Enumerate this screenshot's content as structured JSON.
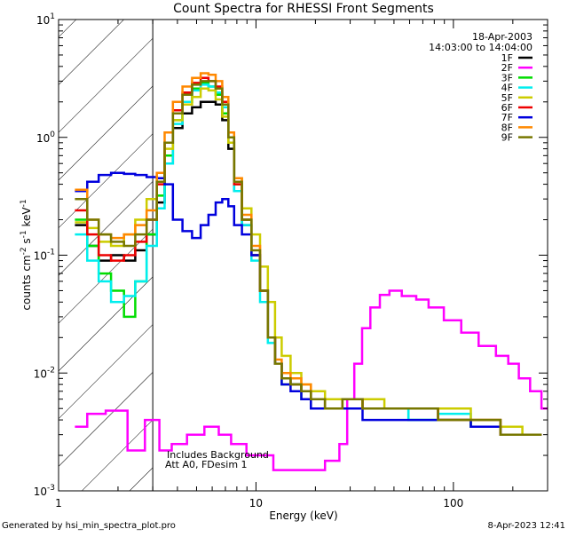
{
  "chart_data": {
    "type": "line",
    "title": "Count Spectra for RHESSI Front Segments",
    "xlabel": "Energy (keV)",
    "ylabel_parts": {
      "base": "counts cm",
      "e1": "-2",
      "mid1": " s",
      "e2": "-1",
      "mid2": " keV",
      "e3": "-1"
    },
    "xscale": "log",
    "yscale": "log",
    "xlim": [
      1,
      300
    ],
    "ylim": [
      0.001,
      10
    ],
    "x_ticks": [
      {
        "value": 1,
        "label": "1"
      },
      {
        "value": 10,
        "label": "10"
      },
      {
        "value": 100,
        "label": "100"
      }
    ],
    "y_ticks": [
      {
        "value": 0.001,
        "base": "10",
        "exp": "-3"
      },
      {
        "value": 0.01,
        "base": "10",
        "exp": "-2"
      },
      {
        "value": 0.1,
        "base": "10",
        "exp": "-1"
      },
      {
        "value": 1,
        "base": "10",
        "exp": "0"
      },
      {
        "value": 10,
        "base": "10",
        "exp": "1"
      }
    ],
    "hatched_region": [
      1,
      3
    ],
    "date": "18-Apr-2003",
    "time_range": "14:03:00 to 14:04:00",
    "annotation_lines": [
      "Includes Background",
      "Att A0, FDesim 1"
    ],
    "footer_left": "Generated by hsi_min_spectra_plot.pro",
    "footer_right": "8-Apr-2023 12:41",
    "series": [
      {
        "name": "1F",
        "color": "#000000",
        "x": [
          1.3,
          1.5,
          1.7,
          2.0,
          2.3,
          2.6,
          3.0,
          3.3,
          3.6,
          4.0,
          4.5,
          5.0,
          5.5,
          6.0,
          6.5,
          7.0,
          7.5,
          8.0,
          9.0,
          10.0,
          11.0,
          12.0,
          13.0,
          14.0,
          16.0,
          18.0,
          20.0,
          25.0,
          30.0,
          40.0,
          50.0,
          70.0,
          100.0,
          150.0,
          200.0,
          250.0
        ],
        "y": [
          0.18,
          0.12,
          0.09,
          0.1,
          0.09,
          0.11,
          0.15,
          0.28,
          0.6,
          1.2,
          1.6,
          1.8,
          2.0,
          2.0,
          1.9,
          1.4,
          0.8,
          0.35,
          0.18,
          0.1,
          0.05,
          0.02,
          0.012,
          0.009,
          0.008,
          0.007,
          0.006,
          0.005,
          0.005,
          0.005,
          0.005,
          0.005,
          0.004,
          0.0035,
          0.003,
          0.003
        ]
      },
      {
        "name": "2F",
        "color": "#ff00ff",
        "x": [
          1.3,
          1.5,
          2.0,
          2.5,
          3.0,
          3.5,
          4.0,
          5.0,
          6.0,
          7.0,
          8.0,
          10.0,
          15.0,
          20.0,
          25.0,
          28.0,
          30.0,
          33.0,
          36.0,
          40.0,
          45.0,
          50.0,
          60.0,
          70.0,
          80.0,
          100.0,
          120.0,
          150.0,
          180.0,
          200.0,
          230.0,
          260.0,
          300.0
        ],
        "y": [
          0.0035,
          0.0045,
          0.0048,
          0.0022,
          0.004,
          0.0022,
          0.0025,
          0.003,
          0.0035,
          0.003,
          0.0025,
          0.002,
          0.0015,
          0.0015,
          0.0018,
          0.0025,
          0.006,
          0.012,
          0.024,
          0.036,
          0.046,
          0.05,
          0.045,
          0.042,
          0.036,
          0.028,
          0.022,
          0.017,
          0.014,
          0.012,
          0.009,
          0.007,
          0.005
        ]
      },
      {
        "name": "3F",
        "color": "#00dd00",
        "x": [
          1.3,
          1.5,
          1.7,
          2.0,
          2.3,
          2.6,
          3.0,
          3.3,
          3.6,
          4.0,
          4.5,
          5.0,
          5.5,
          6.0,
          6.5,
          7.0,
          7.5,
          8.0,
          9.0,
          10.0,
          11.0,
          12.0,
          13.0,
          14.0,
          16.0,
          18.0,
          20.0,
          25.0,
          30.0,
          40.0,
          50.0,
          70.0,
          100.0,
          150.0,
          200.0,
          250.0
        ],
        "y": [
          0.2,
          0.12,
          0.07,
          0.05,
          0.03,
          0.06,
          0.15,
          0.32,
          0.7,
          1.4,
          2.0,
          2.6,
          2.9,
          2.7,
          2.3,
          1.6,
          0.9,
          0.4,
          0.2,
          0.1,
          0.05,
          0.02,
          0.012,
          0.008,
          0.008,
          0.006,
          0.005,
          0.005,
          0.006,
          0.005,
          0.005,
          0.004,
          0.004,
          0.0035,
          0.003,
          0.003
        ]
      },
      {
        "name": "4F",
        "color": "#00eeee",
        "x": [
          1.3,
          1.5,
          1.7,
          2.0,
          2.3,
          2.6,
          3.0,
          3.3,
          3.6,
          4.0,
          4.5,
          5.0,
          5.5,
          6.0,
          6.5,
          7.0,
          7.5,
          8.0,
          9.0,
          10.0,
          11.0,
          12.0,
          13.0,
          14.0,
          16.0,
          18.0,
          20.0,
          25.0,
          30.0,
          40.0,
          50.0,
          70.0,
          100.0,
          150.0,
          200.0,
          250.0
        ],
        "y": [
          0.15,
          0.09,
          0.06,
          0.04,
          0.045,
          0.06,
          0.12,
          0.25,
          0.6,
          1.3,
          2.0,
          2.5,
          2.8,
          2.7,
          2.4,
          1.8,
          0.9,
          0.35,
          0.18,
          0.09,
          0.04,
          0.018,
          0.012,
          0.009,
          0.008,
          0.007,
          0.006,
          0.005,
          0.005,
          0.005,
          0.005,
          0.004,
          0.0045,
          0.004,
          0.003,
          0.003
        ]
      },
      {
        "name": "5F",
        "color": "#cccc00",
        "x": [
          1.3,
          1.5,
          1.7,
          2.0,
          2.3,
          2.6,
          3.0,
          3.3,
          3.6,
          4.0,
          4.5,
          5.0,
          5.5,
          6.0,
          6.5,
          7.0,
          7.5,
          8.0,
          9.0,
          10.0,
          11.0,
          12.0,
          13.0,
          14.0,
          16.0,
          18.0,
          20.0,
          25.0,
          30.0,
          40.0,
          50.0,
          70.0,
          100.0,
          150.0,
          200.0,
          250.0
        ],
        "y": [
          0.19,
          0.17,
          0.13,
          0.12,
          0.15,
          0.2,
          0.3,
          0.45,
          0.8,
          1.4,
          1.9,
          2.2,
          2.6,
          2.5,
          2.1,
          1.5,
          0.9,
          0.45,
          0.25,
          0.15,
          0.08,
          0.04,
          0.02,
          0.014,
          0.01,
          0.008,
          0.007,
          0.006,
          0.006,
          0.006,
          0.005,
          0.005,
          0.005,
          0.004,
          0.0035,
          0.003
        ]
      },
      {
        "name": "6F",
        "color": "#ee0000",
        "x": [
          1.3,
          1.5,
          1.7,
          2.0,
          2.3,
          2.6,
          3.0,
          3.3,
          3.6,
          4.0,
          4.5,
          5.0,
          5.5,
          6.0,
          6.5,
          7.0,
          7.5,
          8.0,
          9.0,
          10.0,
          11.0,
          12.0,
          13.0,
          14.0,
          16.0,
          18.0,
          20.0,
          25.0,
          30.0,
          40.0,
          50.0,
          70.0,
          100.0,
          150.0,
          200.0,
          250.0
        ],
        "y": [
          0.24,
          0.15,
          0.1,
          0.09,
          0.1,
          0.13,
          0.2,
          0.4,
          0.9,
          1.7,
          2.4,
          2.9,
          3.2,
          3.0,
          2.7,
          2.0,
          1.0,
          0.4,
          0.2,
          0.1,
          0.05,
          0.02,
          0.012,
          0.009,
          0.008,
          0.007,
          0.006,
          0.005,
          0.006,
          0.005,
          0.005,
          0.005,
          0.004,
          0.004,
          0.003,
          0.003
        ]
      },
      {
        "name": "7F",
        "color": "#0000dd",
        "x": [
          1.3,
          1.5,
          1.7,
          2.0,
          2.3,
          2.6,
          3.0,
          3.3,
          3.6,
          4.0,
          4.5,
          5.0,
          5.5,
          6.0,
          6.5,
          7.0,
          7.5,
          8.0,
          9.0,
          10.0,
          11.0,
          12.0,
          13.0,
          14.0,
          16.0,
          18.0,
          20.0,
          25.0,
          30.0,
          40.0,
          50.0,
          70.0,
          100.0,
          150.0,
          200.0,
          250.0
        ],
        "y": [
          0.35,
          0.42,
          0.48,
          0.5,
          0.49,
          0.48,
          0.46,
          0.45,
          0.4,
          0.2,
          0.16,
          0.14,
          0.18,
          0.22,
          0.28,
          0.3,
          0.26,
          0.18,
          0.15,
          0.1,
          0.05,
          0.02,
          0.012,
          0.008,
          0.007,
          0.006,
          0.005,
          0.005,
          0.005,
          0.004,
          0.004,
          0.004,
          0.004,
          0.0035,
          0.003,
          0.003
        ]
      },
      {
        "name": "8F",
        "color": "#ff8800",
        "x": [
          1.3,
          1.5,
          1.7,
          2.0,
          2.3,
          2.6,
          3.0,
          3.3,
          3.6,
          4.0,
          4.5,
          5.0,
          5.5,
          6.0,
          6.5,
          7.0,
          7.5,
          8.0,
          9.0,
          10.0,
          11.0,
          12.0,
          13.0,
          14.0,
          16.0,
          18.0,
          20.0,
          25.0,
          30.0,
          40.0,
          50.0,
          70.0,
          100.0,
          150.0,
          200.0,
          250.0
        ],
        "y": [
          0.36,
          0.2,
          0.15,
          0.14,
          0.15,
          0.18,
          0.24,
          0.5,
          1.1,
          2.0,
          2.7,
          3.2,
          3.5,
          3.4,
          3.0,
          2.2,
          1.1,
          0.45,
          0.22,
          0.12,
          0.05,
          0.02,
          0.013,
          0.01,
          0.009,
          0.008,
          0.006,
          0.005,
          0.006,
          0.005,
          0.005,
          0.005,
          0.004,
          0.004,
          0.003,
          0.003
        ]
      },
      {
        "name": "9F",
        "color": "#777700",
        "x": [
          1.3,
          1.5,
          1.7,
          2.0,
          2.3,
          2.6,
          3.0,
          3.3,
          3.6,
          4.0,
          4.5,
          5.0,
          5.5,
          6.0,
          6.5,
          7.0,
          7.5,
          8.0,
          9.0,
          10.0,
          11.0,
          12.0,
          13.0,
          14.0,
          16.0,
          18.0,
          20.0,
          25.0,
          30.0,
          40.0,
          50.0,
          70.0,
          100.0,
          150.0,
          200.0,
          250.0
        ],
        "y": [
          0.3,
          0.2,
          0.15,
          0.13,
          0.12,
          0.15,
          0.2,
          0.42,
          0.9,
          1.6,
          2.3,
          2.8,
          3.0,
          3.0,
          2.6,
          1.9,
          1.0,
          0.42,
          0.2,
          0.11,
          0.05,
          0.02,
          0.012,
          0.009,
          0.008,
          0.007,
          0.006,
          0.005,
          0.006,
          0.005,
          0.005,
          0.005,
          0.004,
          0.004,
          0.003,
          0.003
        ]
      }
    ]
  }
}
